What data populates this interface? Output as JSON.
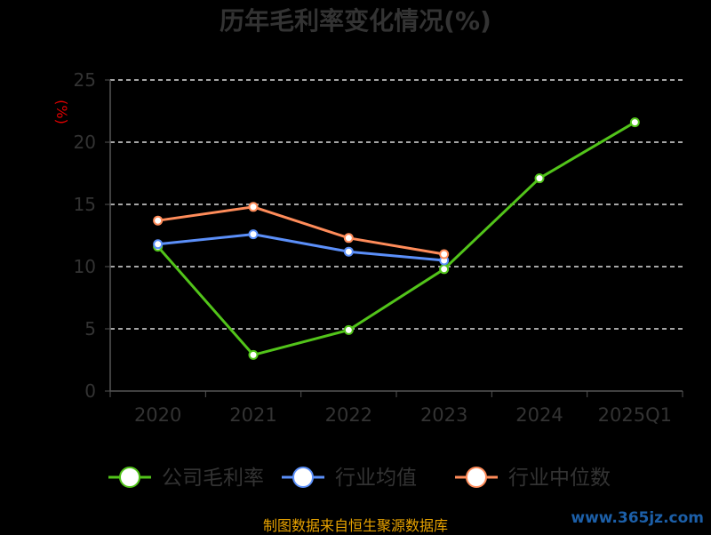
{
  "chart_data": {
    "type": "line",
    "title": "历年毛利率变化情况(%)",
    "unit_label": "(%)",
    "categories": [
      "2020",
      "2021",
      "2022",
      "2023",
      "2024",
      "2025Q1"
    ],
    "ylim": [
      0,
      25
    ],
    "yticks": [
      0,
      5,
      10,
      15,
      20,
      25
    ],
    "grid": true,
    "legend_position": "bottom",
    "series": [
      {
        "name": "公司毛利率",
        "color": "#52c41a",
        "values": [
          11.6,
          2.9,
          4.9,
          9.8,
          17.1,
          21.6
        ]
      },
      {
        "name": "行业均值",
        "color": "#5b8ff9",
        "values": [
          11.8,
          12.6,
          11.2,
          10.5,
          null,
          null
        ]
      },
      {
        "name": "行业中位数",
        "color": "#ff8c5a",
        "values": [
          13.7,
          14.8,
          12.3,
          11.0,
          null,
          null
        ]
      }
    ]
  },
  "footer": {
    "source": "制图数据来自恒生聚源数据库",
    "watermark": "www.365jz.com"
  }
}
